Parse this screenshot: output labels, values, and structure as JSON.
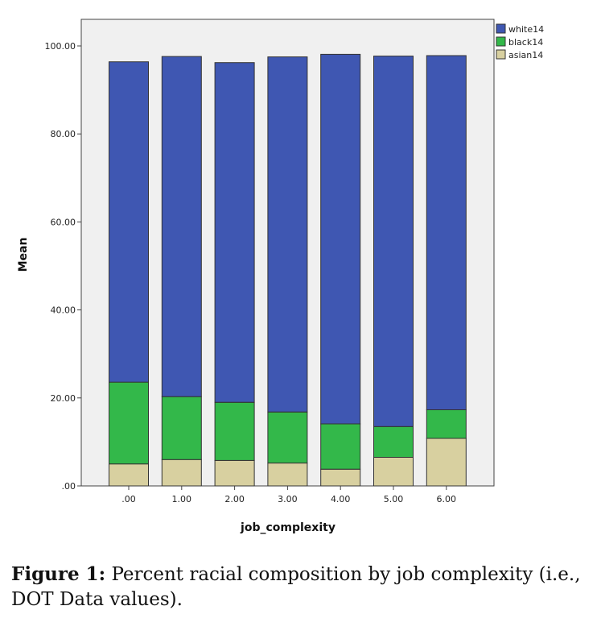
{
  "chart_data": {
    "type": "bar",
    "stacked": true,
    "xlabel": "job_complexity",
    "ylabel": "Mean",
    "ylim": [
      0,
      100
    ],
    "yticks": [
      ".00",
      "20.00",
      "40.00",
      "60.00",
      "80.00",
      "100.00"
    ],
    "ytick_values": [
      0,
      20,
      40,
      60,
      80,
      100
    ],
    "categories": [
      ".00",
      "1.00",
      "2.00",
      "3.00",
      "4.00",
      "5.00",
      "6.00"
    ],
    "series": [
      {
        "name": "asian14",
        "color": "#d8d0a0",
        "values": [
          5.0,
          6.0,
          5.8,
          5.2,
          3.8,
          6.5,
          10.8
        ]
      },
      {
        "name": "black14",
        "color": "#33b84a",
        "values": [
          18.6,
          14.3,
          13.2,
          11.6,
          10.3,
          7.0,
          6.5
        ]
      },
      {
        "name": "white14",
        "color": "#3f57b2",
        "values": [
          72.8,
          77.3,
          77.2,
          80.7,
          84.0,
          84.2,
          80.5
        ]
      }
    ],
    "legend": {
      "placement": "top-right",
      "entries": [
        "white14",
        "black14",
        "asian14"
      ]
    },
    "plot_background": "#f0f0f0",
    "grid": false
  },
  "caption": {
    "label": "Figure 1:",
    "text": "Percent racial composition by job complexity (i.e., DOT Data values)."
  }
}
